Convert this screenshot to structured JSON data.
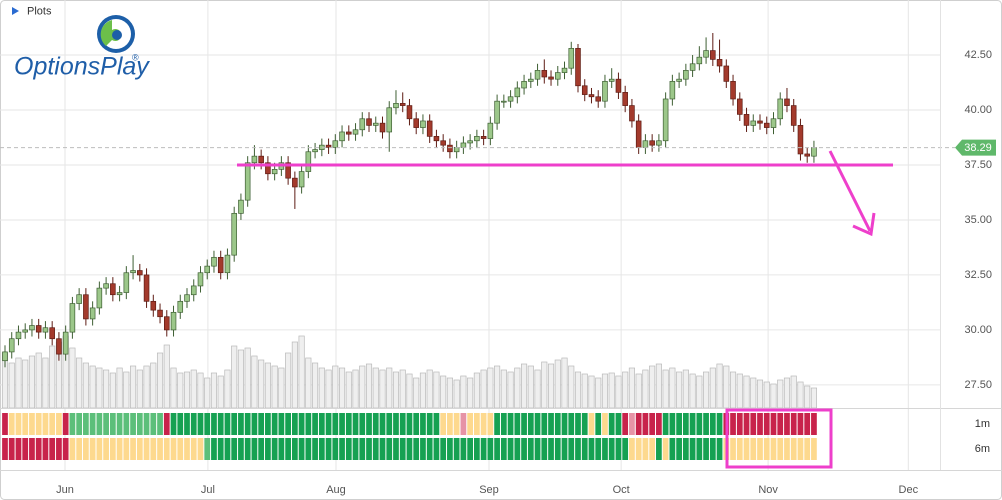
{
  "chart_data": {
    "type": "candlestick",
    "menu_label": "Plots",
    "logo_text": "OptionsPlay",
    "logo_mark": "®",
    "xlim": [
      -0.74,
      138.7
    ],
    "xticks": [
      {
        "value": 8.9,
        "label": "Jun"
      },
      {
        "value": 30.1,
        "label": "Jul"
      },
      {
        "value": 49.1,
        "label": "Aug"
      },
      {
        "value": 71.8,
        "label": "Sep"
      },
      {
        "value": 91.4,
        "label": "Oct"
      },
      {
        "value": 113.2,
        "label": "Nov"
      },
      {
        "value": 134.0,
        "label": "Dec"
      }
    ],
    "ylim": [
      26.45,
      45.0
    ],
    "yticks": [
      {
        "value": 27.5,
        "label": "27.50"
      },
      {
        "value": 30,
        "label": "30.00"
      },
      {
        "value": 32.5,
        "label": "32.50"
      },
      {
        "value": 35,
        "label": "35.00"
      },
      {
        "value": 37.5,
        "label": "37.50"
      },
      {
        "value": 40,
        "label": "40.00"
      },
      {
        "value": 42.5,
        "label": "42.50"
      }
    ],
    "grid": true,
    "up_color": "#9cc78a",
    "down_color": "#a33a2c",
    "volume_color": "#efefef",
    "volume_ylim": [
      0,
      140
    ],
    "last_price": 38.29,
    "last_price_color": "#5fb86a",
    "support_level": 37.5,
    "annotation_color": "#ee3fcb",
    "open": [
      28.6,
      29.0,
      29.6,
      29.9,
      30.0,
      30.2,
      29.9,
      30.1,
      29.6,
      28.9,
      29.9,
      31.2,
      31.6,
      30.5,
      31.0,
      31.9,
      32.1,
      31.6,
      31.7,
      32.6,
      32.7,
      32.5,
      31.3,
      30.9,
      30.6,
      30.0,
      30.8,
      31.3,
      31.6,
      32.0,
      32.6,
      32.9,
      33.3,
      32.6,
      33.4,
      35.3,
      35.9,
      37.6,
      37.9,
      37.6,
      37.1,
      37.3,
      37.6,
      36.9,
      36.5,
      37.2,
      38.1,
      38.2,
      38.4,
      38.3,
      38.6,
      39.0,
      38.9,
      39.1,
      39.6,
      39.3,
      39.4,
      39.0,
      40.1,
      40.3,
      40.2,
      39.6,
      39.2,
      39.5,
      38.8,
      38.6,
      38.4,
      38.1,
      38.3,
      38.5,
      38.6,
      38.8,
      38.7,
      39.4,
      40.4,
      40.4,
      40.6,
      41.0,
      41.3,
      41.4,
      41.8,
      41.5,
      41.4,
      41.7,
      41.9,
      42.8,
      41.1,
      40.7,
      40.6,
      40.4,
      41.3,
      41.4,
      40.8,
      40.2,
      39.5,
      38.3,
      38.6,
      38.4,
      38.6,
      40.5,
      41.3,
      41.4,
      41.8,
      42.1,
      42.4,
      42.7,
      42.3,
      42.0,
      41.3,
      40.5,
      39.8,
      39.3,
      39.5,
      39.4,
      39.2,
      39.6,
      40.5,
      40.2,
      39.3,
      38.0,
      37.9
    ],
    "high": [
      29.3,
      29.9,
      30.2,
      30.3,
      30.5,
      30.5,
      30.4,
      30.4,
      29.9,
      30.2,
      31.5,
      31.9,
      31.9,
      31.3,
      32.2,
      32.4,
      32.4,
      32.0,
      32.9,
      33.4,
      33.0,
      32.8,
      31.6,
      31.2,
      30.9,
      31.1,
      31.6,
      31.9,
      32.3,
      32.9,
      33.2,
      33.6,
      33.6,
      33.7,
      35.6,
      36.2,
      37.9,
      38.4,
      38.2,
      37.9,
      37.6,
      37.9,
      37.9,
      37.2,
      37.5,
      38.4,
      38.5,
      38.7,
      38.7,
      38.9,
      39.3,
      39.3,
      39.4,
      39.9,
      39.9,
      39.7,
      39.7,
      40.4,
      40.9,
      40.8,
      40.5,
      39.9,
      39.8,
      39.8,
      39.1,
      38.9,
      38.7,
      38.6,
      38.8,
      38.9,
      39.1,
      39.1,
      39.7,
      40.7,
      40.7,
      40.9,
      41.3,
      41.6,
      41.7,
      42.1,
      42.3,
      41.8,
      42.0,
      42.2,
      43.1,
      43.0,
      41.4,
      41.0,
      40.9,
      41.6,
      41.9,
      41.7,
      41.1,
      40.5,
      39.8,
      38.9,
      38.9,
      38.9,
      40.8,
      41.6,
      41.7,
      42.1,
      42.5,
      42.9,
      43.3,
      43.5,
      43.2,
      42.3,
      41.6,
      40.8,
      40.1,
      39.8,
      39.8,
      39.7,
      39.9,
      40.8,
      41.0,
      40.5,
      39.6,
      38.3,
      38.6
    ],
    "low": [
      28.3,
      28.7,
      29.3,
      29.6,
      29.7,
      29.6,
      29.6,
      29.3,
      28.6,
      28.6,
      29.6,
      30.9,
      30.2,
      30.2,
      30.7,
      31.6,
      31.3,
      31.3,
      31.4,
      32.3,
      32.2,
      31.0,
      30.6,
      30.3,
      29.7,
      29.7,
      30.5,
      31.0,
      31.3,
      31.7,
      32.3,
      32.6,
      32.3,
      32.3,
      33.1,
      35.0,
      35.6,
      37.3,
      37.3,
      36.8,
      36.8,
      37.0,
      36.6,
      35.5,
      36.2,
      36.9,
      37.8,
      37.9,
      38.0,
      38.0,
      38.3,
      38.6,
      38.6,
      38.8,
      39.0,
      39.0,
      38.7,
      38.1,
      39.8,
      39.9,
      39.3,
      38.9,
      38.9,
      38.5,
      38.3,
      38.1,
      37.8,
      37.8,
      38.0,
      38.2,
      38.3,
      38.4,
      38.4,
      39.1,
      40.1,
      40.1,
      40.3,
      40.7,
      41.0,
      41.1,
      41.2,
      41.1,
      41.1,
      41.4,
      41.6,
      40.8,
      40.4,
      40.3,
      40.1,
      40.1,
      41.0,
      40.5,
      39.9,
      39.2,
      38.0,
      38.0,
      38.1,
      38.1,
      38.3,
      40.2,
      41.0,
      41.1,
      41.5,
      41.8,
      42.1,
      42.0,
      41.7,
      41.0,
      40.2,
      39.5,
      39.0,
      39.0,
      39.1,
      38.9,
      38.9,
      39.3,
      39.9,
      39.0,
      37.7,
      37.6,
      37.6
    ],
    "close": [
      29.0,
      29.6,
      29.9,
      30.0,
      30.2,
      29.9,
      30.1,
      29.6,
      28.9,
      29.9,
      31.2,
      31.6,
      30.5,
      31.0,
      31.9,
      32.1,
      31.6,
      31.7,
      32.6,
      32.7,
      32.5,
      31.3,
      30.9,
      30.6,
      30.0,
      30.8,
      31.3,
      31.6,
      32.0,
      32.6,
      32.9,
      33.3,
      32.6,
      33.4,
      35.3,
      35.9,
      37.6,
      37.9,
      37.6,
      37.1,
      37.3,
      37.6,
      36.9,
      36.5,
      37.2,
      38.1,
      38.2,
      38.4,
      38.3,
      38.6,
      39.0,
      38.9,
      39.1,
      39.6,
      39.3,
      39.4,
      39.0,
      40.1,
      40.3,
      40.2,
      39.6,
      39.2,
      39.5,
      38.8,
      38.6,
      38.4,
      38.1,
      38.3,
      38.5,
      38.6,
      38.8,
      38.7,
      39.4,
      40.4,
      40.4,
      40.6,
      41.0,
      41.3,
      41.4,
      41.8,
      41.5,
      41.4,
      41.7,
      41.9,
      42.8,
      41.1,
      40.7,
      40.6,
      40.4,
      41.3,
      41.4,
      40.8,
      40.2,
      39.5,
      38.3,
      38.6,
      38.4,
      38.6,
      40.5,
      41.3,
      41.4,
      41.8,
      42.1,
      42.4,
      42.7,
      42.3,
      42.0,
      41.3,
      40.5,
      39.8,
      39.3,
      39.5,
      39.4,
      39.2,
      39.6,
      40.5,
      40.2,
      39.3,
      38.0,
      37.9,
      38.29
    ],
    "volume": [
      55,
      45,
      50,
      48,
      52,
      55,
      50,
      62,
      66,
      72,
      60,
      50,
      45,
      42,
      40,
      38,
      35,
      40,
      36,
      42,
      38,
      42,
      45,
      55,
      63,
      40,
      35,
      36,
      38,
      35,
      30,
      35,
      32,
      38,
      62,
      58,
      60,
      52,
      48,
      45,
      42,
      40,
      55,
      66,
      72,
      50,
      45,
      40,
      38,
      42,
      40,
      36,
      38,
      42,
      44,
      40,
      38,
      40,
      36,
      38,
      34,
      30,
      35,
      38,
      36,
      32,
      30,
      28,
      32,
      30,
      35,
      38,
      40,
      42,
      38,
      36,
      40,
      44,
      42,
      38,
      46,
      44,
      48,
      50,
      42,
      36,
      34,
      32,
      30,
      34,
      35,
      32,
      36,
      40,
      34,
      38,
      42,
      44,
      38,
      40,
      36,
      38,
      34,
      32,
      36,
      40,
      44,
      42,
      36,
      34,
      32,
      30,
      28,
      26,
      24,
      28,
      30,
      32,
      26,
      22,
      20
    ],
    "heatmap": [
      {
        "name": "1m",
        "colors": [
          "#c8234b",
          "#fdd98e",
          "#fdd98e",
          "#fdd98e",
          "#fdd98e",
          "#fdd98e",
          "#fdd98e",
          "#fdd98e",
          "#fdd98e",
          "#c8234b",
          "#5cbf7a",
          "#5cbf7a",
          "#5cbf7a",
          "#5cbf7a",
          "#5cbf7a",
          "#5cbf7a",
          "#5cbf7a",
          "#5cbf7a",
          "#5cbf7a",
          "#5cbf7a",
          "#5cbf7a",
          "#5cbf7a",
          "#5cbf7a",
          "#5cbf7a",
          "#c8234b",
          "#16a152",
          "#16a152",
          "#16a152",
          "#16a152",
          "#16a152",
          "#16a152",
          "#16a152",
          "#16a152",
          "#16a152",
          "#16a152",
          "#16a152",
          "#16a152",
          "#16a152",
          "#16a152",
          "#16a152",
          "#16a152",
          "#16a152",
          "#16a152",
          "#16a152",
          "#16a152",
          "#16a152",
          "#16a152",
          "#16a152",
          "#16a152",
          "#16a152",
          "#16a152",
          "#16a152",
          "#16a152",
          "#16a152",
          "#16a152",
          "#16a152",
          "#16a152",
          "#16a152",
          "#16a152",
          "#16a152",
          "#16a152",
          "#16a152",
          "#16a152",
          "#16a152",
          "#16a152",
          "#fdd98e",
          "#fdd98e",
          "#fdd98e",
          "#e693a6",
          "#fdd98e",
          "#fdd98e",
          "#fdd98e",
          "#fdd98e",
          "#16a152",
          "#16a152",
          "#16a152",
          "#16a152",
          "#16a152",
          "#16a152",
          "#16a152",
          "#16a152",
          "#16a152",
          "#16a152",
          "#16a152",
          "#16a152",
          "#16a152",
          "#16a152",
          "#fdd98e",
          "#16a152",
          "#fdd98e",
          "#16a152",
          "#16a152",
          "#c8234b",
          "#e693a6",
          "#c8234b",
          "#c8234b",
          "#c8234b",
          "#c8234b",
          "#16a152",
          "#16a152",
          "#16a152",
          "#16a152",
          "#16a152",
          "#16a152",
          "#16a152",
          "#16a152",
          "#16a152",
          "#c8234b",
          "#c8234b",
          "#c8234b",
          "#c8234b",
          "#c8234b",
          "#c8234b",
          "#c8234b",
          "#c8234b",
          "#c8234b",
          "#c8234b",
          "#c8234b",
          "#c8234b",
          "#c8234b",
          "#c8234b"
        ]
      },
      {
        "name": "6m",
        "colors": [
          "#c8234b",
          "#c8234b",
          "#c8234b",
          "#c8234b",
          "#c8234b",
          "#c8234b",
          "#c8234b",
          "#c8234b",
          "#c8234b",
          "#c8234b",
          "#fdd98e",
          "#fdd98e",
          "#fdd98e",
          "#fdd98e",
          "#fdd98e",
          "#fdd98e",
          "#fdd98e",
          "#fdd98e",
          "#fdd98e",
          "#fdd98e",
          "#fdd98e",
          "#fdd98e",
          "#fdd98e",
          "#fdd98e",
          "#fdd98e",
          "#fdd98e",
          "#fdd98e",
          "#fdd98e",
          "#fdd98e",
          "#fdd98e",
          "#5cbf7a",
          "#16a152",
          "#16a152",
          "#16a152",
          "#16a152",
          "#16a152",
          "#16a152",
          "#16a152",
          "#16a152",
          "#16a152",
          "#16a152",
          "#16a152",
          "#16a152",
          "#16a152",
          "#16a152",
          "#16a152",
          "#16a152",
          "#16a152",
          "#16a152",
          "#16a152",
          "#16a152",
          "#16a152",
          "#16a152",
          "#16a152",
          "#16a152",
          "#16a152",
          "#16a152",
          "#16a152",
          "#16a152",
          "#16a152",
          "#16a152",
          "#16a152",
          "#16a152",
          "#16a152",
          "#16a152",
          "#16a152",
          "#16a152",
          "#16a152",
          "#16a152",
          "#16a152",
          "#16a152",
          "#16a152",
          "#16a152",
          "#16a152",
          "#16a152",
          "#16a152",
          "#16a152",
          "#16a152",
          "#16a152",
          "#16a152",
          "#16a152",
          "#16a152",
          "#16a152",
          "#16a152",
          "#16a152",
          "#16a152",
          "#16a152",
          "#16a152",
          "#16a152",
          "#16a152",
          "#16a152",
          "#16a152",
          "#16a152",
          "#fdd98e",
          "#fdd98e",
          "#fdd98e",
          "#fdd98e",
          "#16a152",
          "#fdd98e",
          "#16a152",
          "#16a152",
          "#16a152",
          "#16a152",
          "#16a152",
          "#16a152",
          "#16a152",
          "#16a152",
          "#fdd98e",
          "#fdd98e",
          "#fdd98e",
          "#fdd98e",
          "#fdd98e",
          "#fdd98e",
          "#fdd98e",
          "#fdd98e",
          "#fdd98e",
          "#fdd98e",
          "#fdd98e",
          "#fdd98e",
          "#fdd98e",
          "#fdd98e"
        ]
      }
    ]
  }
}
